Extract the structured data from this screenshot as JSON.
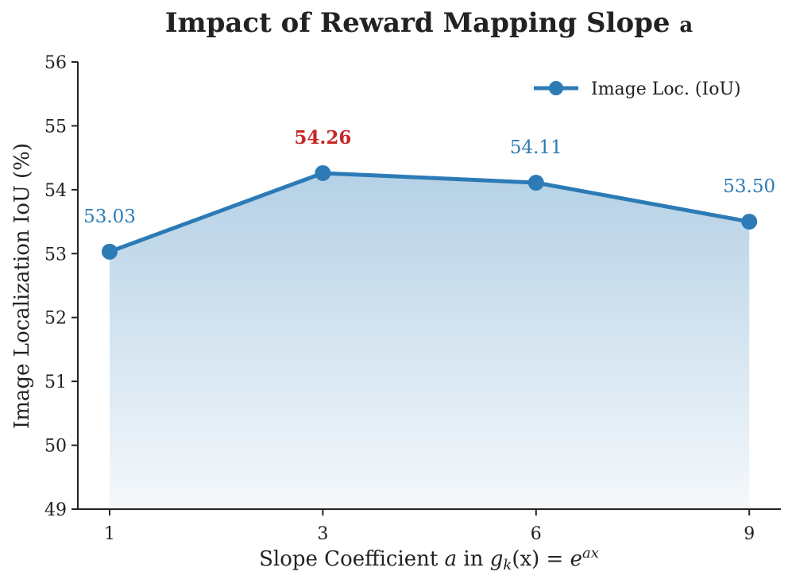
{
  "chart_data": {
    "type": "area",
    "title": "Impact of Reward Mapping Slope",
    "title_suffix": "a",
    "xlabel": {
      "prefix": "Slope Coefficient ",
      "var": "a",
      "middle": " in ",
      "func": "g",
      "func_sub": "k",
      "func_arg": "(x)",
      "equals": " = ",
      "base": "e",
      "exponent": "ax"
    },
    "ylabel": "Image Localization IoU (%)",
    "categories": [
      "1",
      "3",
      "6",
      "9"
    ],
    "x": [
      1,
      3,
      6,
      9
    ],
    "series": [
      {
        "name": "Image Loc. (IoU)",
        "values": [
          53.03,
          54.26,
          54.11,
          53.5
        ],
        "labels": [
          "53.03",
          "54.26",
          "54.11",
          "53.50"
        ],
        "color": "#2c7bb6"
      }
    ],
    "highlight": {
      "index": 1,
      "color": "#c62828"
    },
    "ylim": [
      49,
      56
    ],
    "yticks": [
      "49",
      "50",
      "51",
      "52",
      "53",
      "54",
      "55",
      "56"
    ],
    "legend": "top-right",
    "grid": false
  }
}
